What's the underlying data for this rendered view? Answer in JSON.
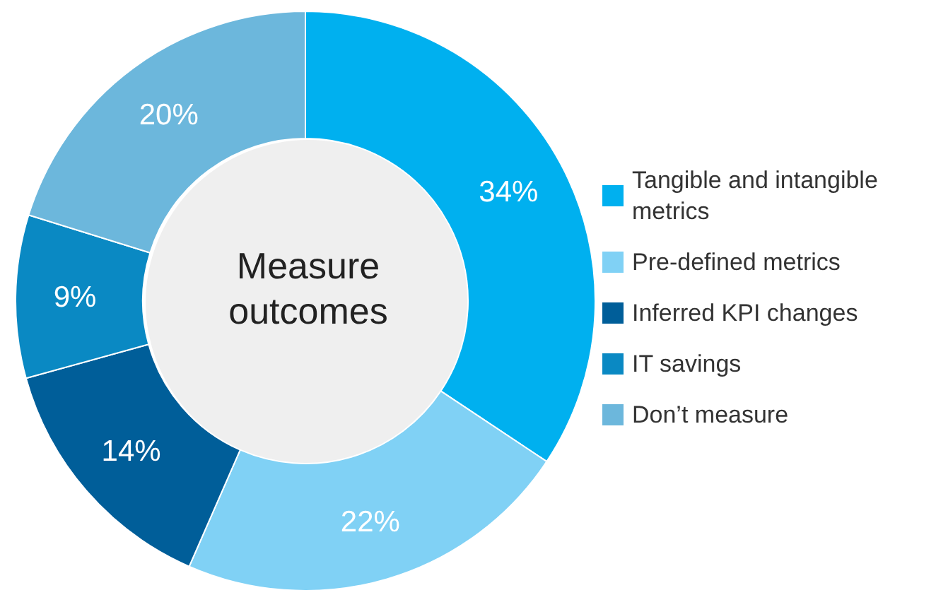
{
  "chart_data": {
    "type": "donut",
    "title": "Measure outcomes",
    "categories": [
      "Tangible and intangible metrics",
      "Pre-defined metrics",
      "Inferred KPI changes",
      "IT savings",
      "Don’t measure"
    ],
    "values": [
      34,
      22,
      14,
      9,
      20
    ],
    "value_labels": [
      "34%",
      "22%",
      "14%",
      "9%",
      "20%"
    ],
    "colors": [
      "#00b0ef",
      "#80d1f5",
      "#005e99",
      "#0a89c3",
      "#6cb7dc"
    ],
    "legend": "right"
  }
}
